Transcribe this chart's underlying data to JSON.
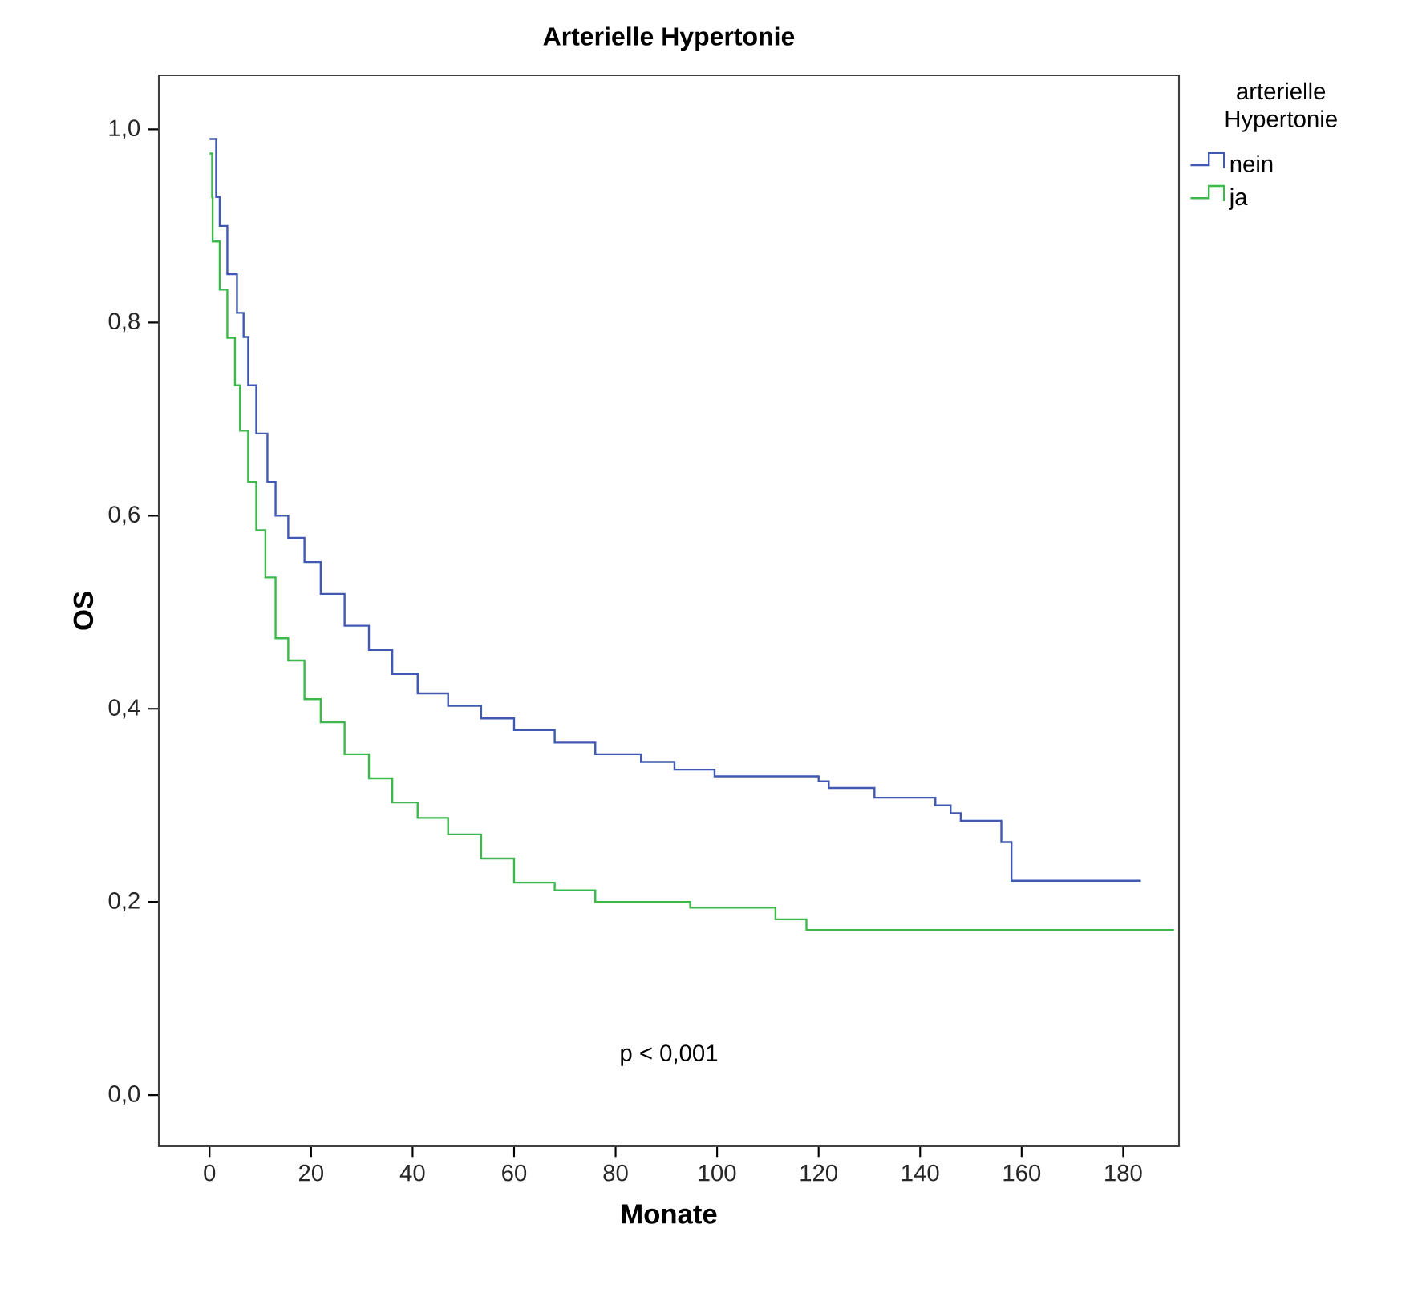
{
  "chart_data": {
    "type": "step",
    "title": "Arterielle Hypertonie",
    "xlabel": "Monate",
    "ylabel": "OS",
    "legend_title": "arterielle Hypertonie",
    "legend": "top right",
    "xlim": [
      -10,
      191
    ],
    "ylim": [
      -0.053,
      1.056
    ],
    "xticks": [
      0,
      20,
      40,
      60,
      80,
      100,
      120,
      140,
      160,
      180
    ],
    "yticks": [
      {
        "value": 0,
        "label": "0,0"
      },
      {
        "value": 0.2,
        "label": "0,2"
      },
      {
        "value": 0.4,
        "label": "0,4"
      },
      {
        "value": 0.6,
        "label": "0,6"
      },
      {
        "value": 0.8,
        "label": "0,8"
      },
      {
        "value": 1.0,
        "label": "1,0"
      }
    ],
    "annotations": [
      "p < 0,001"
    ],
    "series": [
      {
        "name": "nein",
        "color": "#4159b2",
        "x": [
          0,
          1.3,
          2,
          3.5,
          5.4,
          6.7,
          7.6,
          9.2,
          11.4,
          13,
          15.5,
          18.7,
          21.9,
          26.6,
          31.4,
          36,
          41,
          47,
          53.5,
          60,
          68,
          76,
          85,
          91.6,
          99.5,
          120,
          122,
          131,
          143,
          146,
          148,
          156,
          158,
          183.5
        ],
        "values": [
          0.99,
          0.93,
          0.9,
          0.85,
          0.81,
          0.785,
          0.735,
          0.685,
          0.635,
          0.6,
          0.577,
          0.552,
          0.519,
          0.486,
          0.461,
          0.436,
          0.416,
          0.403,
          0.39,
          0.378,
          0.365,
          0.353,
          0.345,
          0.337,
          0.33,
          0.325,
          0.318,
          0.308,
          0.3,
          0.292,
          0.284,
          0.262,
          0.222,
          0.222
        ]
      },
      {
        "name": "ja",
        "color": "#3cb94a",
        "x": [
          0,
          0.5,
          0.6,
          2,
          3.5,
          5,
          6,
          7.6,
          9.2,
          11,
          13,
          15.5,
          18.7,
          21.9,
          26.6,
          31.4,
          36,
          41,
          47,
          53.5,
          60,
          68,
          76,
          94.7,
          111.5,
          117.6,
          190
        ],
        "values": [
          0.975,
          0.93,
          0.884,
          0.834,
          0.784,
          0.735,
          0.688,
          0.635,
          0.585,
          0.536,
          0.473,
          0.45,
          0.41,
          0.386,
          0.353,
          0.328,
          0.303,
          0.287,
          0.27,
          0.245,
          0.22,
          0.212,
          0.2,
          0.194,
          0.182,
          0.171,
          0.171
        ]
      }
    ]
  }
}
